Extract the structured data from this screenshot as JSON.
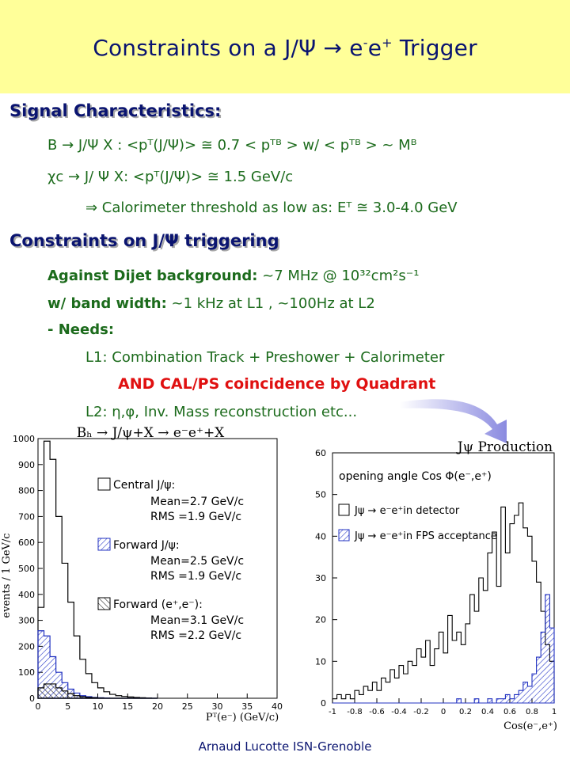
{
  "title": {
    "prefix": "Constraints on  a  J/Ψ  →  e",
    "minus": "-",
    "mid": "e",
    "plus": "+",
    "suffix": " Trigger"
  },
  "signal": {
    "heading": "Signal Characteristics:",
    "line1": "B  → J/Ψ X : <pᵀ(J/Ψ)> ≅ 0.7 < pᵀᴮ >  w/ < pᵀᴮ > ~ Mᴮ",
    "line2": "χc → J/  Ψ X:  <pᵀ(J/Ψ)> ≅ 1.5 GeV/c",
    "line3": "⇒ Calorimeter threshold as low as: Eᵀ ≅ 3.0-4.0 GeV"
  },
  "constraints": {
    "heading": "Constraints on J/Ψ triggering",
    "dijet_label": "Against Dijet  background:",
    "dijet_value": "  ~7 MHz @ 10³²cm²s⁻¹",
    "band_label": "w/ band width:",
    "band_value": " ~1 kHz at L1 , ~100Hz at L2",
    "needs": "-  Needs:",
    "l1": "L1: Combination Track + Preshower + Calorimeter",
    "and_line": "AND  CAL/PS  coincidence  by Quadrant",
    "l2": "L2:  η,φ,  Inv. Mass reconstruction etc..."
  },
  "left_plot": {
    "label": "Bₕ → J/ψ+X → e⁻e⁺+X",
    "ylabel": "events / 1 GeV/c",
    "xlabel": "Pᵀ(e⁻) (GeV/c)",
    "yticks": [
      "0",
      "100",
      "200",
      "300",
      "400",
      "500",
      "600",
      "700",
      "800",
      "900",
      "1000"
    ],
    "xticks": [
      "0",
      "5",
      "10",
      "15",
      "20",
      "25",
      "30",
      "35",
      "40"
    ],
    "legend": [
      {
        "name": "Central J/ψ:",
        "mean": "Mean=2.7 GeV/c",
        "rms": "RMS =1.9 GeV/c"
      },
      {
        "name": "Forward J/ψ:",
        "mean": "Mean=2.5 GeV/c",
        "rms": "RMS =1.9 GeV/c"
      },
      {
        "name": "Forward (e⁺,e⁻):",
        "mean": "Mean=3.1 GeV/c",
        "rms": "RMS =2.2 GeV/c"
      }
    ]
  },
  "right_plot": {
    "label": "Jψ Production",
    "inner_title": "opening angle Cos Φ(e⁻,e⁺)",
    "xlabel": "Cos(e⁻,e⁺)",
    "yticks": [
      "0",
      "10",
      "20",
      "30",
      "40",
      "50",
      "60"
    ],
    "xticks": [
      "-1",
      "-0.8",
      "-0.6",
      "-0.4",
      "-0.2",
      "0",
      "0.2",
      "0.4",
      "0.6",
      "0.8",
      "1"
    ],
    "legend": [
      "Jψ → e⁻e⁺in detector",
      "Jψ → e⁻e⁺in FPS acceptance"
    ]
  },
  "footer": "Arnaud Lucotte  ISN-Grenoble",
  "chart_data": [
    {
      "type": "bar",
      "title": "Bₕ → J/ψ+X → e⁻e⁺+X",
      "xlabel": "Pᵀ(e⁻) (GeV/c)",
      "ylabel": "events / 1 GeV/c",
      "xlim": [
        0,
        40
      ],
      "ylim": [
        0,
        1000
      ],
      "x": [
        0.5,
        1.5,
        2.5,
        3.5,
        4.5,
        5.5,
        6.5,
        7.5,
        8.5,
        9.5,
        10.5,
        11.5,
        12.5,
        13.5,
        14.5,
        15.5,
        16.5,
        17.5,
        18.5,
        19.5
      ],
      "series": [
        {
          "name": "Central J/ψ:",
          "values": [
            350,
            990,
            920,
            700,
            520,
            370,
            240,
            150,
            95,
            60,
            40,
            25,
            15,
            10,
            7,
            5,
            3,
            2,
            1,
            0
          ]
        },
        {
          "name": "Forward J/ψ:",
          "values": [
            260,
            240,
            160,
            100,
            60,
            35,
            20,
            10,
            6,
            3,
            2,
            1,
            0,
            0,
            0,
            0,
            0,
            0,
            0,
            0
          ]
        },
        {
          "name": "Forward (e⁺,e⁻):",
          "values": [
            40,
            55,
            55,
            40,
            28,
            18,
            10,
            6,
            3,
            2,
            1,
            0,
            0,
            0,
            0,
            0,
            0,
            0,
            0,
            0
          ]
        }
      ]
    },
    {
      "type": "bar",
      "title": "opening angle Cos Φ(e⁻,e⁺)",
      "xlabel": "Cos(e⁻,e⁺)",
      "xlim": [
        -1,
        1
      ],
      "ylim": [
        0,
        60
      ],
      "bin_width": 0.04,
      "series": [
        {
          "name": "Jψ → e⁻e⁺in detector",
          "values": [
            1,
            2,
            1,
            2,
            1,
            3,
            2,
            4,
            3,
            5,
            3,
            6,
            5,
            8,
            6,
            9,
            7,
            10,
            9,
            13,
            11,
            15,
            9,
            13,
            17,
            12,
            21,
            15,
            17,
            14,
            19,
            26,
            22,
            30,
            27,
            36,
            41,
            28,
            47,
            36,
            43,
            45,
            48,
            42,
            40,
            34,
            29,
            22,
            14,
            10
          ]
        },
        {
          "name": "Jψ → e⁻e⁺in FPS acceptance",
          "values": [
            0,
            0,
            0,
            0,
            0,
            0,
            0,
            0,
            0,
            0,
            0,
            0,
            0,
            0,
            0,
            0,
            0,
            0,
            0,
            0,
            0,
            0,
            0,
            0,
            0,
            0,
            0,
            0,
            1,
            0,
            0,
            0,
            1,
            0,
            0,
            1,
            0,
            1,
            1,
            2,
            1,
            2,
            3,
            5,
            4,
            7,
            11,
            17,
            26,
            18
          ]
        }
      ]
    }
  ]
}
